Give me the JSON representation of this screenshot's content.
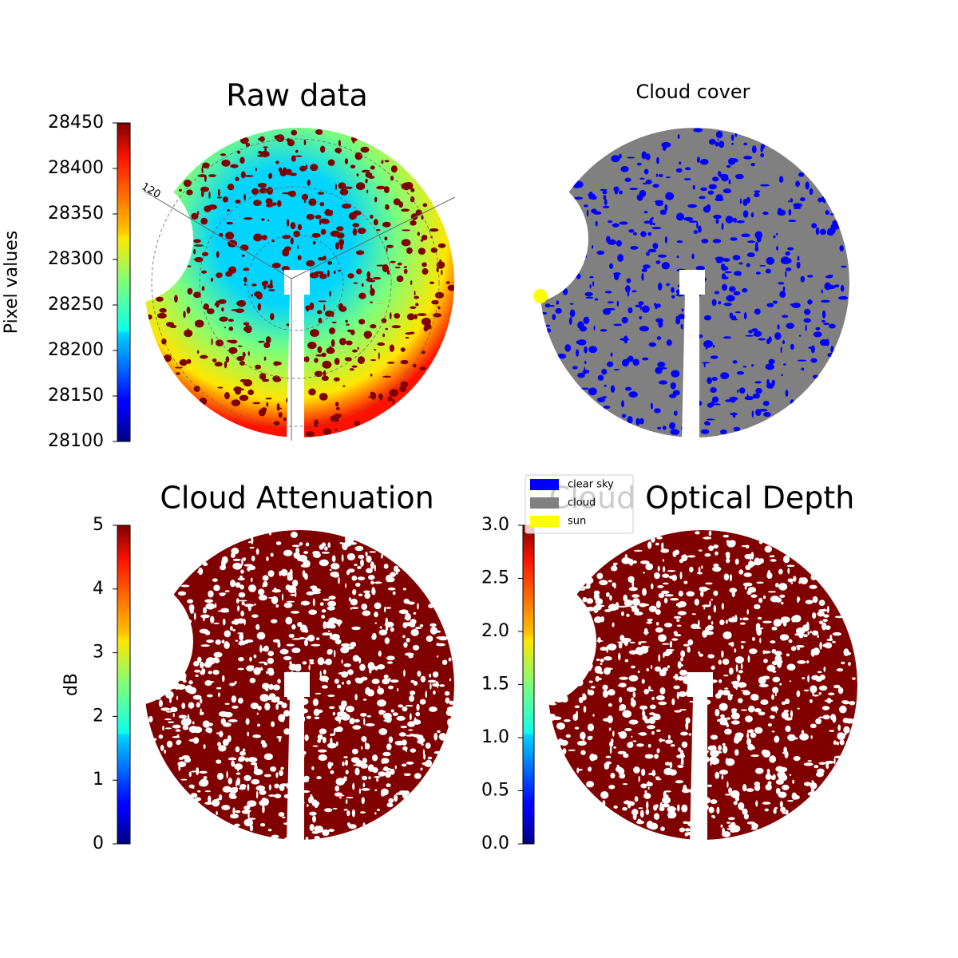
{
  "chart_data": [
    {
      "type": "heatmap",
      "title": "Raw data",
      "colormap": "jet",
      "colorbar": {
        "label": "Pixel values",
        "lim": [
          28100,
          28450
        ],
        "ticks": [
          28100,
          28150,
          28200,
          28250,
          28300,
          28350,
          28400,
          28450
        ]
      },
      "annotations": [
        "120"
      ]
    },
    {
      "type": "classification",
      "title": "Cloud cover",
      "legend": [
        {
          "name": "clear sky",
          "color": "#0000ff"
        },
        {
          "name": "cloud",
          "color": "#808080"
        },
        {
          "name": "sun",
          "color": "#ffff00"
        }
      ]
    },
    {
      "type": "heatmap",
      "title": "Cloud Attenuation",
      "colormap": "jet",
      "colorbar": {
        "label": "dB",
        "lim": [
          0,
          5
        ],
        "ticks": [
          0,
          1,
          2,
          3,
          4,
          5
        ]
      }
    },
    {
      "type": "heatmap",
      "title": "Cloud Optical Depth",
      "colormap": "jet",
      "colorbar": {
        "lim": [
          0,
          3
        ],
        "ticks": [
          {
            "value": 0,
            "label": "0.0"
          },
          0.5,
          {
            "value": 1,
            "label": "1.0"
          },
          1.5,
          {
            "value": 2,
            "label": "2.0"
          },
          2.5,
          {
            "value": 3,
            "label": "3.0"
          }
        ]
      }
    }
  ]
}
